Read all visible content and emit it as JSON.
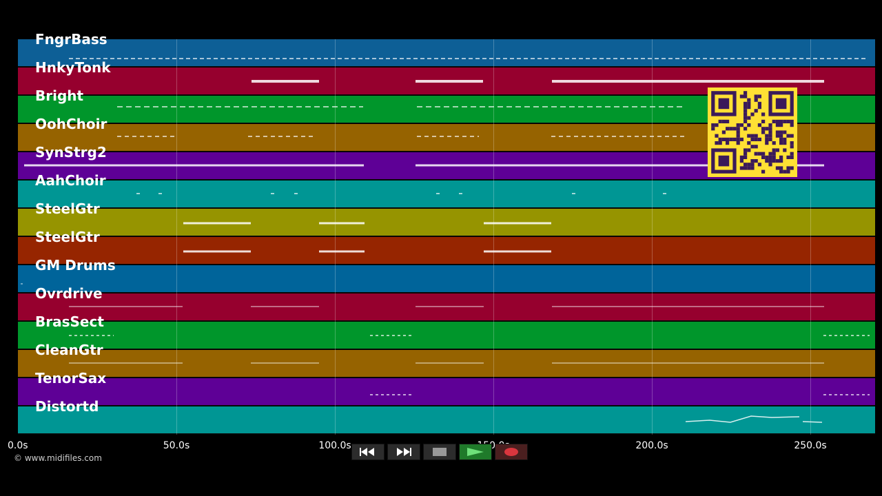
{
  "tracks": [
    {
      "name": "FngrBass",
      "color": "#0d5f96"
    },
    {
      "name": "HnkyTonk",
      "color": "#96002e"
    },
    {
      "name": "Bright",
      "color": "#00962b"
    },
    {
      "name": "OohChoir",
      "color": "#966300"
    },
    {
      "name": "SynStrg2",
      "color": "#5e0096"
    },
    {
      "name": "AahChoir",
      "color": "#009694"
    },
    {
      "name": "SteelGtr",
      "color": "#969400"
    },
    {
      "name": "SteelGtr",
      "color": "#962500"
    },
    {
      "name": "GM Drums",
      "color": "#00649a"
    },
    {
      "name": "Ovrdrive",
      "color": "#96002e"
    },
    {
      "name": "BrasSect",
      "color": "#00962b"
    },
    {
      "name": "CleanGtr",
      "color": "#966300"
    },
    {
      "name": "TenorSax",
      "color": "#5e0096"
    },
    {
      "name": "Distortd",
      "color": "#009694"
    }
  ],
  "axis": {
    "ticks": [
      "0.0s",
      "50.0s",
      "100.0s",
      "150.0s",
      "200.0s",
      "250.0s"
    ]
  },
  "transport": {
    "buttons": [
      {
        "name": "rewind-button",
        "icon": "rewind-icon"
      },
      {
        "name": "fast-forward-button",
        "icon": "fast-forward-icon"
      },
      {
        "name": "stop-button",
        "icon": "stop-icon"
      },
      {
        "name": "play-button",
        "icon": "play-icon"
      },
      {
        "name": "record-button",
        "icon": "record-icon"
      }
    ]
  },
  "copyright": "© www.midifiles.com",
  "qr": {
    "color": "#ffe034",
    "dark": "#3a1a5a"
  }
}
